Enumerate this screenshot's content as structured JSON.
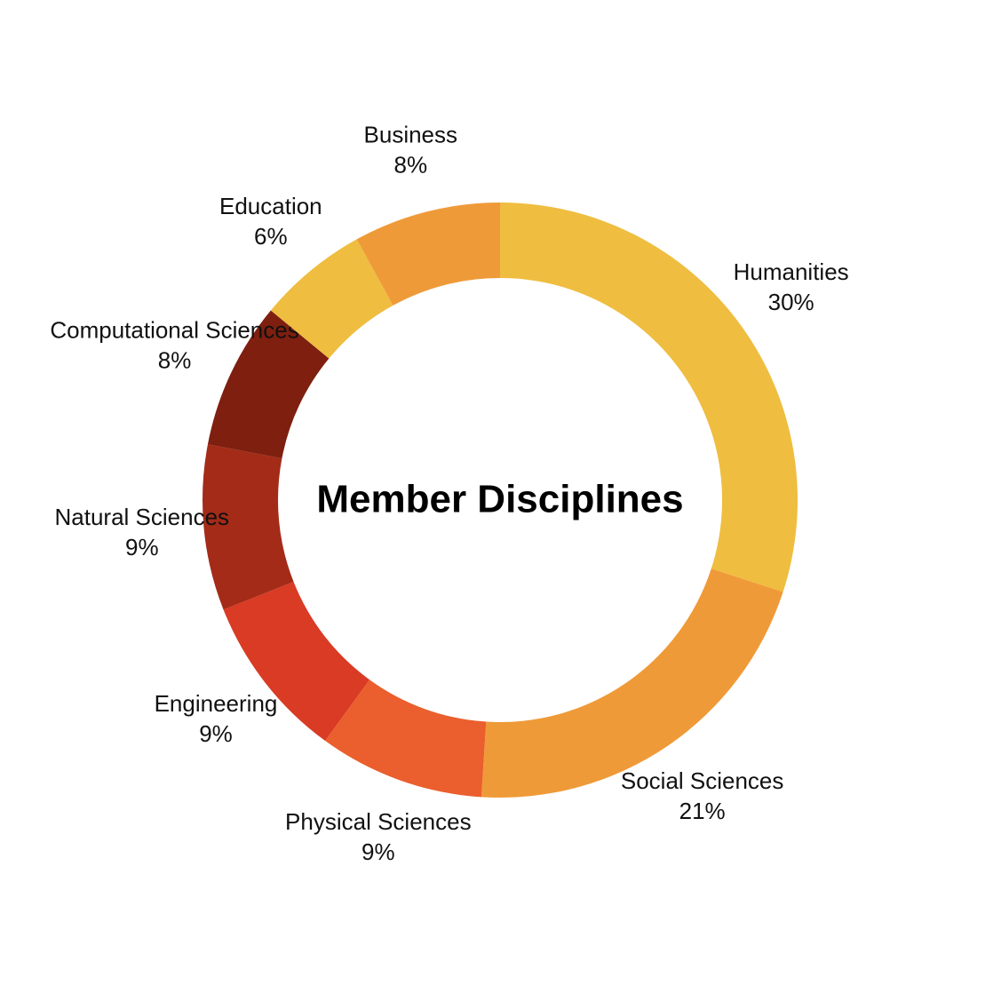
{
  "chart_data": {
    "type": "donut",
    "title": "Member Disciplines",
    "categories": [
      "Humanities",
      "Social Sciences",
      "Physical Sciences",
      "Engineering",
      "Natural Sciences",
      "Computational Sciences",
      "Education",
      "Business"
    ],
    "values": [
      30,
      21,
      9,
      9,
      9,
      8,
      6,
      8
    ],
    "value_labels": [
      "30%",
      "21%",
      "9%",
      "9%",
      "9%",
      "8%",
      "6%",
      "8%"
    ],
    "colors": [
      "#efbd40",
      "#ef9a38",
      "#ea5f2d",
      "#d93b25",
      "#a32b18",
      "#7e1f10",
      "#efbd40",
      "#ef9a38"
    ]
  }
}
